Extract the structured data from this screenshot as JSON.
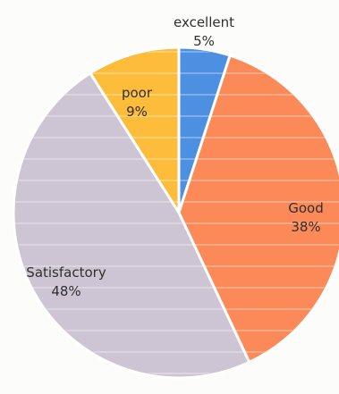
{
  "chart_data": {
    "type": "pie",
    "title": "",
    "start_angle_deg": 0,
    "direction": "clockwise",
    "slices": [
      {
        "name": "excellent",
        "value": 5,
        "label": "5%",
        "color": "#4d8fe0"
      },
      {
        "name": "Good",
        "value": 38,
        "label": "38%",
        "color": "#fb8a58"
      },
      {
        "name": "Satisfactory",
        "value": 48,
        "label": "48%",
        "color": "#cdc5d3"
      },
      {
        "name": "poor",
        "value": 9,
        "label": "9%",
        "color": "#fdbc3a"
      }
    ],
    "separator_color": "#ffffff",
    "legend": "none"
  }
}
